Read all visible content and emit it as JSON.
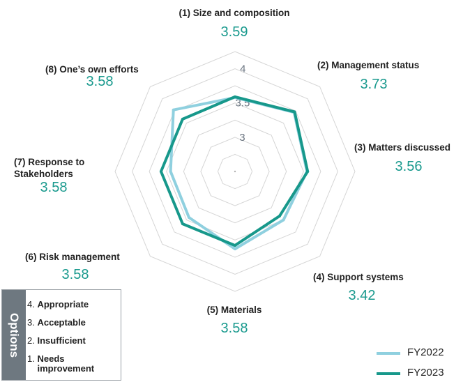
{
  "chart_data": {
    "type": "radar",
    "axes": [
      {
        "label_lines": [
          "(1) Size and composition"
        ],
        "value_text": "3.59"
      },
      {
        "label_lines": [
          "(2) Management status"
        ],
        "value_text": "3.73"
      },
      {
        "label_lines": [
          "(3) Matters discussed"
        ],
        "value_text": "3.56"
      },
      {
        "label_lines": [
          "(4) Support systems"
        ],
        "value_text": "3.42"
      },
      {
        "label_lines": [
          "(5) Materials"
        ],
        "value_text": "3.58"
      },
      {
        "label_lines": [
          "(6) Risk management"
        ],
        "value_text": "3.58"
      },
      {
        "label_lines": [
          "(7) Response to",
          "Stakeholders"
        ],
        "value_text": "3.58"
      },
      {
        "label_lines": [
          "(8) One’s own efforts"
        ],
        "value_text": "3.58"
      }
    ],
    "rmin": 2.5,
    "rmax": 4.25,
    "ticks": [
      3,
      3.5,
      4
    ],
    "tick_labels": [
      "3",
      "3.5",
      "4"
    ],
    "series": [
      {
        "name": "FY2022",
        "color": "#8fd0df",
        "values": [
          3.58,
          3.72,
          3.55,
          3.5,
          3.63,
          3.45,
          3.44,
          3.77
        ]
      },
      {
        "name": "FY2023",
        "color": "#17988b",
        "values": [
          3.59,
          3.73,
          3.56,
          3.42,
          3.58,
          3.58,
          3.58,
          3.58
        ]
      }
    ]
  },
  "options": {
    "title": "Options",
    "items": [
      {
        "num": "4.",
        "text": "Appropriate"
      },
      {
        "num": "3.",
        "text": "Acceptable"
      },
      {
        "num": "2.",
        "text": "Insufficient"
      },
      {
        "num": "1.",
        "text": "Needs\nimprovement"
      }
    ]
  },
  "legend": [
    {
      "label": "FY2022",
      "color": "#8fd0df"
    },
    {
      "label": "FY2023",
      "color": "#17988b"
    }
  ]
}
